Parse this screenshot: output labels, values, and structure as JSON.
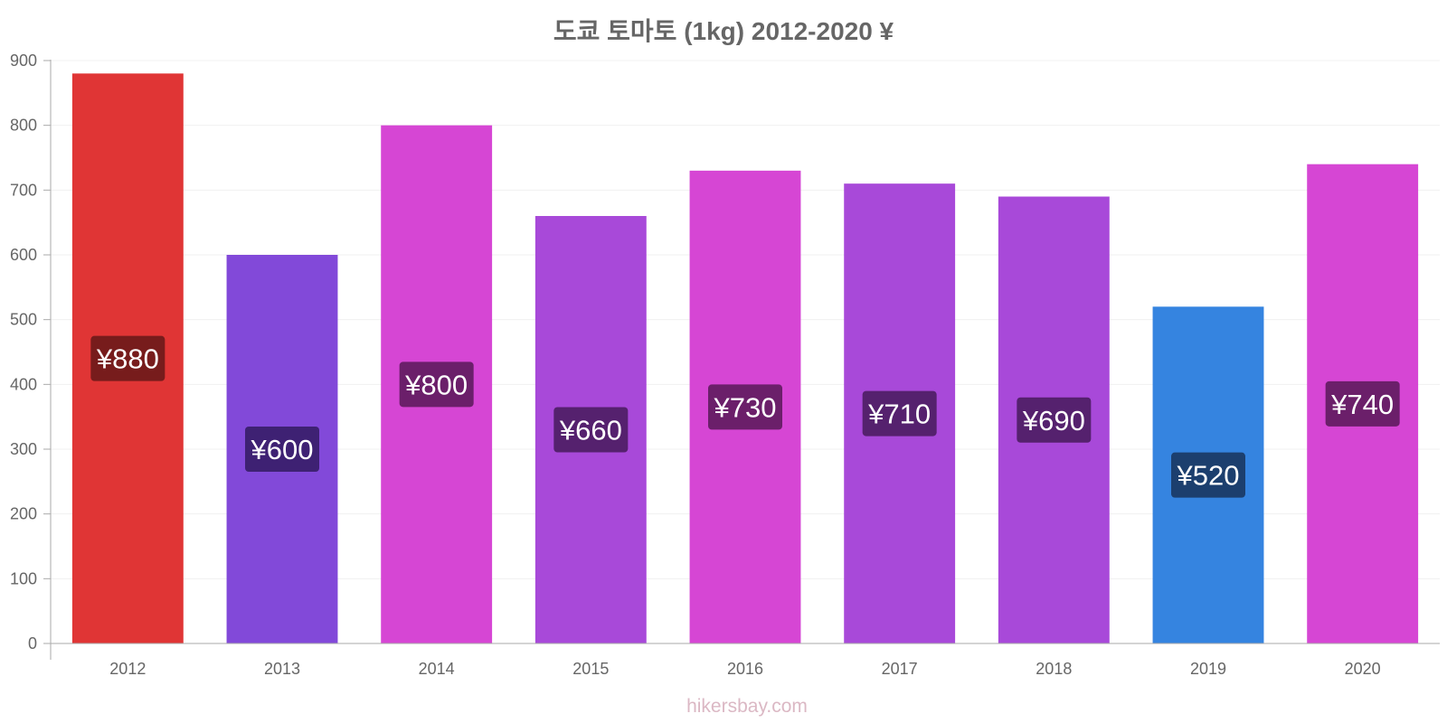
{
  "chart_data": {
    "type": "bar",
    "title": "도쿄 토마토 (1kg) 2012-2020 ¥",
    "categories": [
      "2012",
      "2013",
      "2014",
      "2015",
      "2016",
      "2017",
      "2018",
      "2019",
      "2020"
    ],
    "values": [
      880,
      600,
      800,
      660,
      730,
      710,
      690,
      520,
      740
    ],
    "data_labels": [
      "¥880",
      "¥600",
      "¥800",
      "¥660",
      "¥730",
      "¥710",
      "¥690",
      "¥520",
      "¥740"
    ],
    "bar_colors": [
      "#e03535",
      "#8249d9",
      "#d646d4",
      "#a849d9",
      "#d646d4",
      "#a849d9",
      "#a849d9",
      "#3584e0",
      "#d646d4"
    ],
    "label_bg_colors": [
      "#771c1c",
      "#3e2173",
      "#6b1f6a",
      "#55216e",
      "#6b1f6a",
      "#55216e",
      "#55216e",
      "#1c3f6e",
      "#6b1f6a"
    ],
    "ylim": [
      0,
      900
    ],
    "yticks": [
      0,
      100,
      200,
      300,
      400,
      500,
      600,
      700,
      800,
      900
    ],
    "xlabel": "",
    "ylabel": "",
    "grid": true
  },
  "watermark": "hikersbay.com"
}
